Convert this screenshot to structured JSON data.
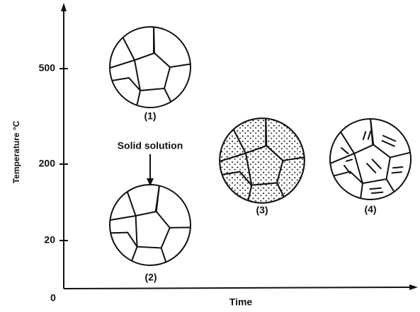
{
  "axes": {
    "y_label": "Temperature °C",
    "x_label": "Time",
    "y_ticks": [
      "500",
      "200",
      "20"
    ],
    "origin": "0"
  },
  "annotation": "Solid solution",
  "structures": [
    {
      "label": "(1)"
    },
    {
      "label": "(2)"
    },
    {
      "label": "(3)"
    },
    {
      "label": "(4)"
    }
  ]
}
